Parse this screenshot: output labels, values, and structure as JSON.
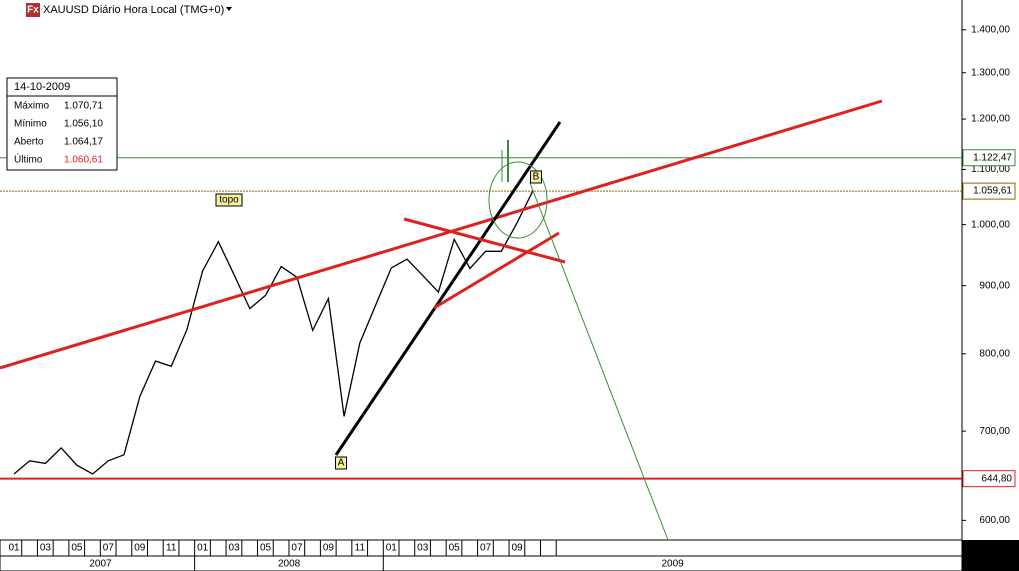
{
  "chart_data": {
    "type": "line",
    "title": "XAUUSD Diário Hora Local (TMG+0)",
    "logo": "Fx",
    "x": [
      "2007-01",
      "2007-02",
      "2007-03",
      "2007-04",
      "2007-05",
      "2007-06",
      "2007-07",
      "2007-08",
      "2007-09",
      "2007-10",
      "2007-11",
      "2007-12",
      "2008-01",
      "2008-02",
      "2008-03",
      "2008-04",
      "2008-05",
      "2008-06",
      "2008-07",
      "2008-08",
      "2008-09",
      "2008-10",
      "2008-11",
      "2008-12",
      "2009-01",
      "2009-02",
      "2009-03",
      "2009-04",
      "2009-05",
      "2009-06",
      "2009-07",
      "2009-08",
      "2009-09",
      "2009-10"
    ],
    "series": [
      {
        "name": "XAUUSD",
        "color": "#000000",
        "values": [
          650,
          665,
          662,
          680,
          660,
          650,
          665,
          672,
          743,
          790,
          783,
          834,
          923,
          971,
          917,
          865,
          885,
          930,
          913,
          833,
          880,
          718,
          815,
          870,
          928,
          942,
          916,
          890,
          975,
          927,
          955,
          955,
          1003,
          1060
        ]
      }
    ],
    "month_labels": [
      "01",
      "03",
      "05",
      "07",
      "09",
      "11",
      "01",
      "03",
      "05",
      "07",
      "09",
      "11",
      "01",
      "03",
      "05",
      "07",
      "09"
    ],
    "year_labels": [
      "2007",
      "2008",
      "2009"
    ],
    "log_scale": true,
    "ylim": [
      580,
      1474
    ],
    "yticks": [
      {
        "value": 600,
        "label": "600,00"
      },
      {
        "value": 700,
        "label": "700,00"
      },
      {
        "value": 800,
        "label": "800,00"
      },
      {
        "value": 900,
        "label": "900,00"
      },
      {
        "value": 1000,
        "label": "1.000,00"
      },
      {
        "value": 1100,
        "label": "1.100,00"
      },
      {
        "value": 1200,
        "label": "1.200,00"
      },
      {
        "value": 1300,
        "label": "1.300,00"
      },
      {
        "value": 1400,
        "label": "1.400,00"
      }
    ],
    "levels": [
      {
        "value": 1122.47,
        "label": "1.122,47",
        "color": "#3a8a3a"
      },
      {
        "value": 1059.61,
        "label": "1.059,61",
        "color": "#8a6a00"
      },
      {
        "value": 644.8,
        "label": "644,80",
        "color": "#e02020"
      }
    ],
    "annotations": [
      "topo",
      "A",
      "B"
    ],
    "info": {
      "date": "14-10-2009",
      "rows": [
        {
          "label": "Máximo",
          "value": "1.070,71"
        },
        {
          "label": "Mínimo",
          "value": "1.056,10"
        },
        {
          "label": "Aberto",
          "value": "1.064,17"
        },
        {
          "label": "Último",
          "value": "1.060,61"
        }
      ]
    }
  }
}
